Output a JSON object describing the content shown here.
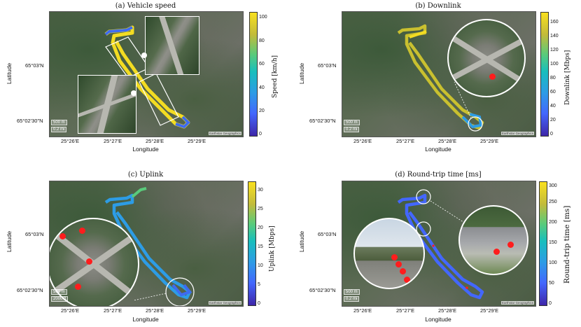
{
  "figure": {
    "panels": [
      {
        "title": "(a) Vehicle speed",
        "cbar_label": "Speed [km/h]",
        "cbar_ticks": [
          "0",
          "20",
          "40",
          "60",
          "80",
          "100"
        ]
      },
      {
        "title": "(b) Downlink",
        "cbar_label": "Downlink [Mbps]",
        "cbar_ticks": [
          "0",
          "20",
          "40",
          "60",
          "80",
          "100",
          "120",
          "140",
          "160"
        ]
      },
      {
        "title": "(c) Uplink",
        "cbar_label": "Uplink [Mbps]",
        "cbar_ticks": [
          "0",
          "5",
          "10",
          "15",
          "20",
          "25",
          "30"
        ]
      },
      {
        "title": "(d) Round-trip time [ms]",
        "cbar_label": "Round-trip time [ms]",
        "cbar_ticks": [
          "0",
          "50",
          "100",
          "150",
          "200",
          "250",
          "300"
        ]
      }
    ],
    "xticks": [
      "25°26'E",
      "25°27'E",
      "25°28'E",
      "25°29'E"
    ],
    "yticks": [
      "65°03'N",
      "65°02'30\"N"
    ],
    "xlabel": "Longitude",
    "ylabel": "Latitude",
    "scale_top": "500 m",
    "scale_bottom_mi": "0.2 mi",
    "scale_bottom_ft": "2000 ft",
    "credit": "Earthstar Geographics",
    "colors": {
      "low": "#3e26a8",
      "mid": "#18bebd",
      "high": "#f9e01f",
      "marker": "#ff1d1d"
    }
  },
  "chart_data": [
    {
      "type": "heatmap",
      "title": "(a) Vehicle speed",
      "xlabel": "Longitude",
      "ylabel": "Latitude",
      "colorbar": {
        "label": "Speed [km/h]",
        "range": [
          0,
          105
        ],
        "ticks": [
          0,
          20,
          40,
          60,
          80,
          100
        ]
      },
      "xticks": [
        "25°26'E",
        "25°27'E",
        "25°28'E",
        "25°29'E"
      ],
      "yticks": [
        "65°03'N",
        "65°02'30\"N"
      ]
    },
    {
      "type": "heatmap",
      "title": "(b) Downlink",
      "xlabel": "Longitude",
      "ylabel": "Latitude",
      "colorbar": {
        "label": "Downlink [Mbps]",
        "range": [
          0,
          175
        ],
        "ticks": [
          0,
          20,
          40,
          60,
          80,
          100,
          120,
          140,
          160
        ]
      },
      "xticks": [
        "25°26'E",
        "25°27'E",
        "25°28'E",
        "25°29'E"
      ],
      "yticks": [
        "65°03'N",
        "65°02'30\"N"
      ]
    },
    {
      "type": "heatmap",
      "title": "(c) Uplink",
      "xlabel": "Longitude",
      "ylabel": "Latitude",
      "colorbar": {
        "label": "Uplink [Mbps]",
        "range": [
          0,
          32
        ],
        "ticks": [
          0,
          5,
          10,
          15,
          20,
          25,
          30
        ]
      },
      "xticks": [
        "25°26'E",
        "25°27'E",
        "25°28'E",
        "25°29'E"
      ],
      "yticks": [
        "65°03'N",
        "65°02'30\"N"
      ]
    },
    {
      "type": "heatmap",
      "title": "(d) Round-trip time [ms]",
      "xlabel": "Longitude",
      "ylabel": "Latitude",
      "colorbar": {
        "label": "Round-trip time [ms]",
        "range": [
          0,
          300
        ],
        "ticks": [
          0,
          50,
          100,
          150,
          200,
          250,
          300
        ]
      },
      "xticks": [
        "25°26'E",
        "25°27'E",
        "25°28'E",
        "25°29'E"
      ],
      "yticks": [
        "65°03'N",
        "65°02'30\"N"
      ]
    }
  ]
}
